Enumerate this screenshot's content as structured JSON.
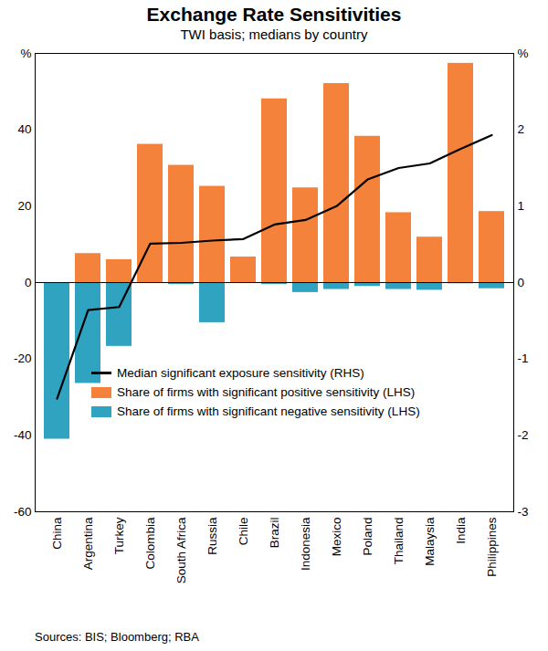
{
  "chart_data": {
    "type": "bar",
    "title": "Exchange Rate Sensitivities",
    "subtitle": "TWI basis; medians by country",
    "caption": "Sources:  BIS; Bloomberg; RBA",
    "categories": [
      "China",
      "Argentina",
      "Turkey",
      "Colombia",
      "South Africa",
      "Russia",
      "Chile",
      "Brazil",
      "Indonesia",
      "Mexico",
      "Poland",
      "Thailand",
      "Malaysia",
      "India",
      "Philippines"
    ],
    "series": [
      {
        "name": "Median significant exposure sensitivity (RHS)",
        "type": "line",
        "axis": "y2",
        "color": "#000000",
        "values": [
          -1.52,
          -0.36,
          -0.32,
          0.51,
          0.52,
          0.55,
          0.57,
          0.76,
          0.82,
          1.0,
          1.35,
          1.5,
          1.56,
          1.75,
          1.93
        ]
      },
      {
        "name": "Share of firms with significant positive sensitivity (LHS)",
        "type": "bar",
        "color": "#f5823b",
        "values": [
          0,
          7.6,
          6,
          36.2,
          30.7,
          25.2,
          6.7,
          48.1,
          24.8,
          52.1,
          38.3,
          18.3,
          11.9,
          57.4,
          18.6
        ]
      },
      {
        "name": "Share of firms with significant negative sensitivity (LHS)",
        "type": "bar",
        "color": "#2fa3bf",
        "values": [
          -41,
          -26.4,
          -16.7,
          0,
          -0.5,
          -10.5,
          0,
          -0.5,
          -2.6,
          -1.8,
          -1,
          -1.8,
          -2,
          -0.3,
          -1.6
        ]
      }
    ],
    "ylim": [
      -60,
      60
    ],
    "yticks": [
      -60,
      -40,
      -20,
      0,
      20,
      40,
      {
        "value": 60,
        "label": "%"
      }
    ],
    "y2lim": [
      -3,
      3
    ],
    "y2ticks": [
      -3,
      -2,
      -1,
      0,
      1,
      2,
      {
        "value": 3,
        "label": "%"
      }
    ],
    "grid": false
  }
}
